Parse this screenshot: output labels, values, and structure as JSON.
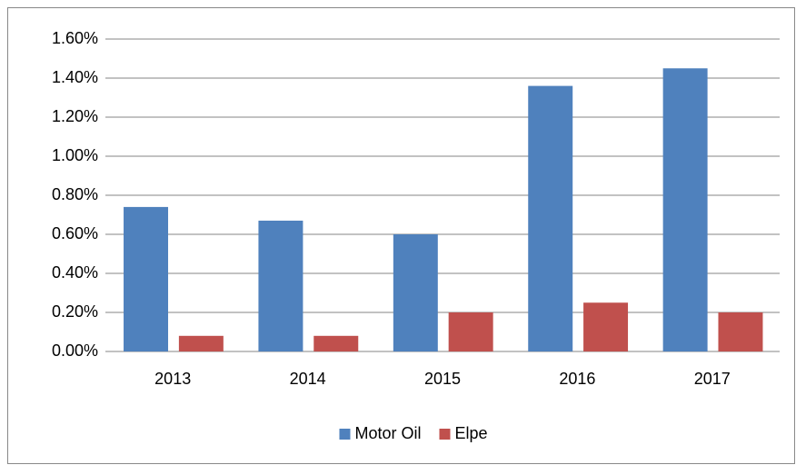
{
  "chart_data": {
    "type": "bar",
    "categories": [
      "2013",
      "2014",
      "2015",
      "2016",
      "2017"
    ],
    "series": [
      {
        "name": "Motor Oil",
        "color": "#4f81bd",
        "values": [
          0.74,
          0.67,
          0.6,
          1.36,
          1.45
        ]
      },
      {
        "name": "Elpe",
        "color": "#c0504d",
        "values": [
          0.08,
          0.08,
          0.2,
          0.25,
          0.2
        ]
      }
    ],
    "ylim": [
      0,
      1.6
    ],
    "yticks": [
      {
        "value": 0,
        "label": "0.00%"
      },
      {
        "value": 0.2,
        "label": "0.20%"
      },
      {
        "value": 0.4,
        "label": "0.40%"
      },
      {
        "value": 0.6,
        "label": "0.60%"
      },
      {
        "value": 0.8,
        "label": "0.80%"
      },
      {
        "value": 1.0,
        "label": "1.00%"
      },
      {
        "value": 1.2,
        "label": "1.20%"
      },
      {
        "value": 1.4,
        "label": "1.40%"
      },
      {
        "value": 1.6,
        "label": "1.60%"
      }
    ],
    "grid": true,
    "legend": "bottom"
  }
}
